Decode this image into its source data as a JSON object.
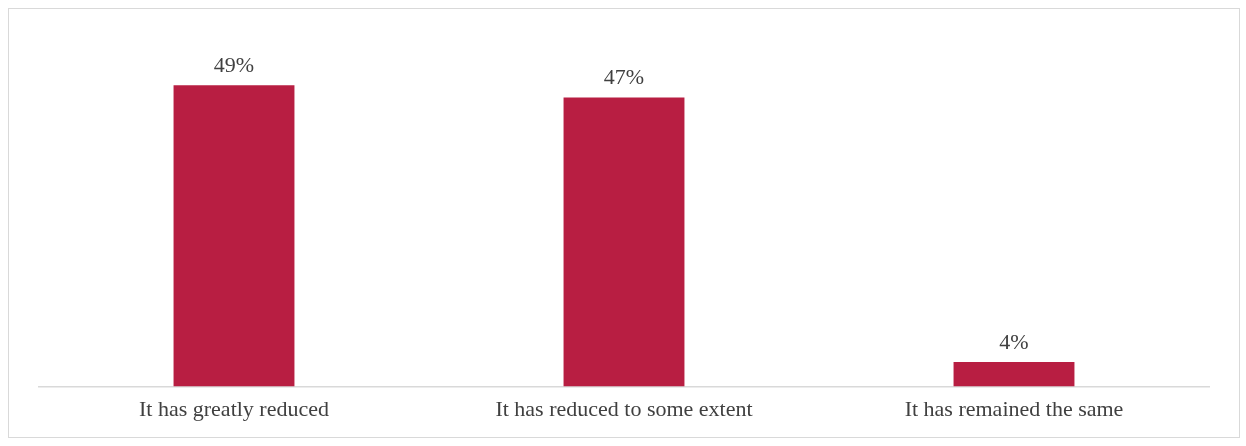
{
  "chart_data": {
    "type": "bar",
    "categories": [
      "It has greatly reduced",
      "It has reduced to some extent",
      "It has remained the same"
    ],
    "values": [
      49,
      47,
      4
    ],
    "value_labels": [
      "49%",
      "47%",
      "4%"
    ],
    "color": "#b81e42",
    "grid": false,
    "legend": false
  }
}
